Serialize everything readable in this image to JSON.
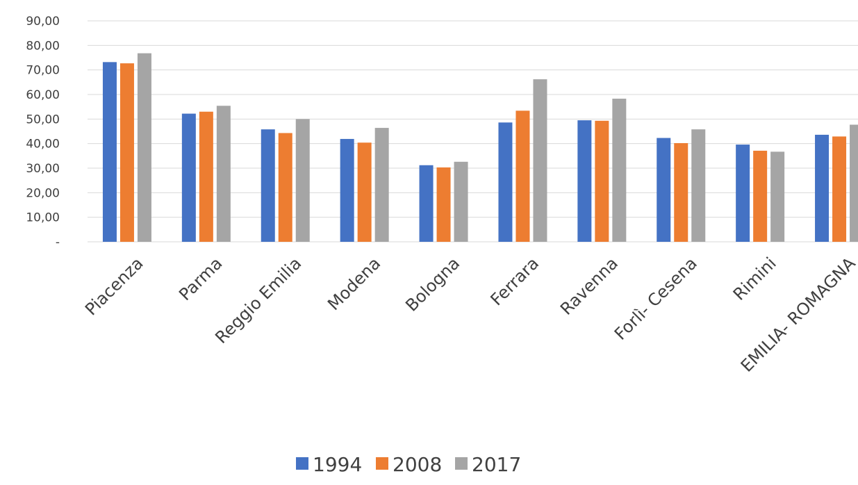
{
  "chart_data": {
    "type": "bar",
    "title": "",
    "xlabel": "",
    "ylabel": "",
    "ylim": [
      0,
      90
    ],
    "yticks": [
      {
        "value": 0,
        "label": "-"
      },
      {
        "value": 10,
        "label": "10,00"
      },
      {
        "value": 20,
        "label": "20,00"
      },
      {
        "value": 30,
        "label": "30,00"
      },
      {
        "value": 40,
        "label": "40,00"
      },
      {
        "value": 50,
        "label": "50,00"
      },
      {
        "value": 60,
        "label": "60,00"
      },
      {
        "value": 70,
        "label": "70,00"
      },
      {
        "value": 80,
        "label": "80,00"
      },
      {
        "value": 90,
        "label": "90,00"
      }
    ],
    "grid": true,
    "legend_position": "bottom",
    "categories": [
      "Piacenza",
      "Parma",
      "Reggio Emilia",
      "Modena",
      "Bologna",
      "Ferrara",
      "Ravenna",
      "Forlì- Cesena",
      "Rimini",
      "EMILIA- ROMAGNA"
    ],
    "series": [
      {
        "name": "1994",
        "color": "#4472C4",
        "values": [
          73.2,
          52.2,
          45.8,
          41.9,
          31.2,
          48.6,
          49.5,
          42.3,
          39.6,
          43.6
        ]
      },
      {
        "name": "2008",
        "color": "#ED7D31",
        "values": [
          72.7,
          53.0,
          44.3,
          40.4,
          30.3,
          53.4,
          49.3,
          40.2,
          37.1,
          42.9
        ]
      },
      {
        "name": "2017",
        "color": "#A5A5A5",
        "values": [
          76.8,
          55.4,
          50.0,
          46.4,
          32.6,
          66.2,
          58.3,
          45.8,
          36.7,
          47.7
        ]
      }
    ]
  }
}
